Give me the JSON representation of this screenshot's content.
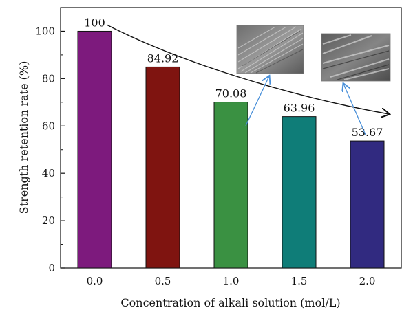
{
  "chart_data": {
    "type": "bar",
    "title": "",
    "xlabel": "Concentration of alkali solution (mol/L)",
    "ylabel": "Strength retention rate (%)",
    "categories": [
      "0.0",
      "0.5",
      "1.0",
      "1.5",
      "2.0"
    ],
    "values": [
      100,
      84.92,
      70.08,
      63.96,
      53.67
    ],
    "value_labels": [
      "100",
      "84.92",
      "70.08",
      "63.96",
      "53.67"
    ],
    "bar_colors": [
      "#7d1a7d",
      "#7f1410",
      "#3a9142",
      "#0f7d78",
      "#312a80"
    ],
    "ylim": [
      0,
      110
    ],
    "yticks": [
      0,
      20,
      40,
      60,
      80,
      100
    ],
    "grid": false,
    "legend": "none",
    "annotations": {
      "trend_arrow": "decreasing trend arrow across bars",
      "insets": [
        "SEM micrograph (1.0 mol/L)",
        "SEM micrograph (2.0 mol/L)"
      ],
      "inset_pointer_color": "#4a90d9"
    }
  }
}
